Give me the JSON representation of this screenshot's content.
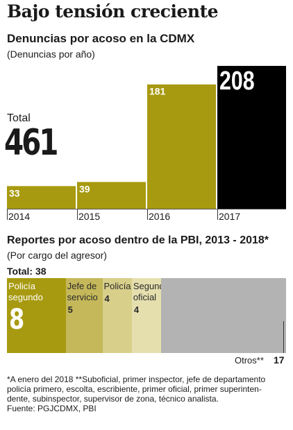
{
  "title": "Bajo tensión creciente",
  "chart_data": [
    {
      "type": "bar",
      "title": "Denuncias por acoso en la CDMX",
      "subtitle": "(Denuncias por año)",
      "categories": [
        "2014",
        "2015",
        "2016",
        "2017"
      ],
      "values": [
        33,
        39,
        181,
        208
      ],
      "total_label": "Total",
      "total_value": "461",
      "colors": [
        "#a89a10",
        "#a89a10",
        "#a89a10",
        "#000000"
      ]
    },
    {
      "type": "bar",
      "title": "Reportes por acoso dentro de la PBI, 2013 - 2018*",
      "subtitle": "(Por cargo del agresor)",
      "total_text": "Total: 38",
      "total": 38,
      "segments": [
        {
          "label_lines": [
            "Policía",
            "segundo"
          ],
          "value": 8,
          "color": "#a89a10"
        },
        {
          "label_lines": [
            "Jefe de",
            "servicio"
          ],
          "value": 5,
          "color": "#c5b85a"
        },
        {
          "label_lines": [
            "Policía"
          ],
          "value": 4,
          "color": "#d8cf8a"
        },
        {
          "label_lines": [
            "Segundo",
            "oficial"
          ],
          "value": 4,
          "color": "#e5dfae"
        },
        {
          "label_lines": [
            "Otros**"
          ],
          "value": 17,
          "color": "#b3b3b3"
        }
      ]
    }
  ],
  "notes": [
    "*A enero del 2018 **Suboficial, primer inspector, jefe de departamento",
    "policía primero, escolta, escribiente, primer oficial, primer superinten-",
    "dente, subinspector, supervisor de zona, técnico analista.",
    "Fuente: PGJCDMX, PBI"
  ]
}
